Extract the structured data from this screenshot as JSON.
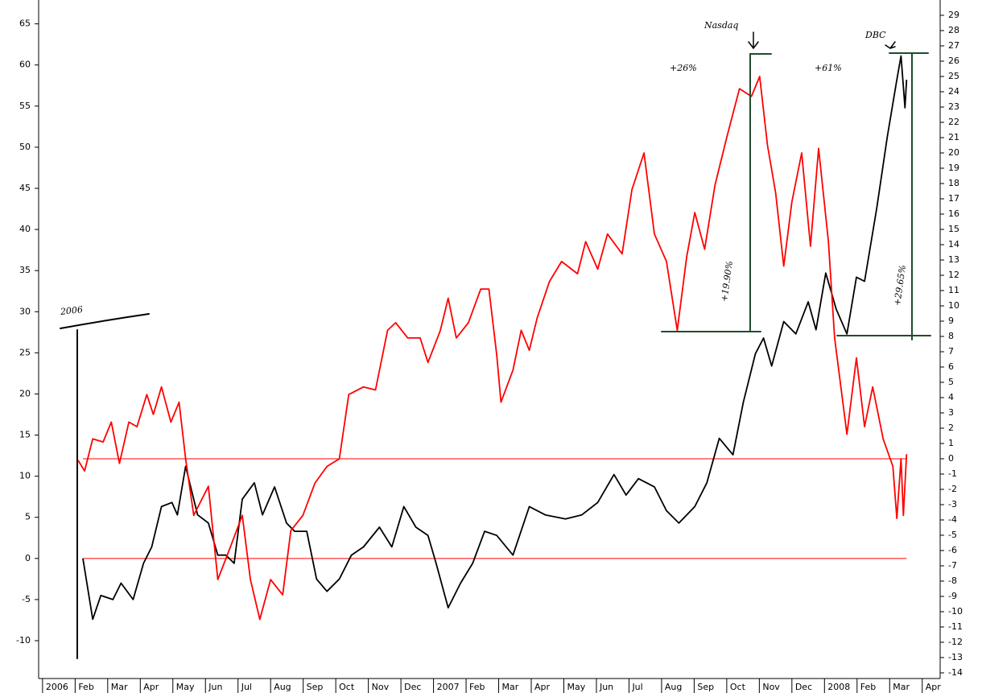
{
  "chart_data": {
    "type": "line",
    "xlim": [
      -0.12,
      27.55
    ],
    "xticks": [
      {
        "value": 0,
        "label": "2006"
      },
      {
        "value": 1,
        "label": "Feb"
      },
      {
        "value": 2,
        "label": "Mar"
      },
      {
        "value": 3,
        "label": "Apr"
      },
      {
        "value": 4,
        "label": "May"
      },
      {
        "value": 5,
        "label": "Jun"
      },
      {
        "value": 6,
        "label": "Jul"
      },
      {
        "value": 7,
        "label": "Aug"
      },
      {
        "value": 8,
        "label": "Sep"
      },
      {
        "value": 9,
        "label": "Oct"
      },
      {
        "value": 10,
        "label": "Nov"
      },
      {
        "value": 11,
        "label": "Dec"
      },
      {
        "value": 12,
        "label": "2007"
      },
      {
        "value": 13,
        "label": "Feb"
      },
      {
        "value": 14,
        "label": "Mar"
      },
      {
        "value": 15,
        "label": "Apr"
      },
      {
        "value": 16,
        "label": "May"
      },
      {
        "value": 17,
        "label": "Jun"
      },
      {
        "value": 18,
        "label": "Jul"
      },
      {
        "value": 19,
        "label": "Aug"
      },
      {
        "value": 20,
        "label": "Sep"
      },
      {
        "value": 21,
        "label": "Oct"
      },
      {
        "value": 22,
        "label": "Nov"
      },
      {
        "value": 23,
        "label": "Dec"
      },
      {
        "value": 24,
        "label": "2008"
      },
      {
        "value": 25,
        "label": "Feb"
      },
      {
        "value": 26,
        "label": "Mar"
      },
      {
        "value": 27,
        "label": "Apr"
      }
    ],
    "ylim": [
      -14.6,
      67.9
    ],
    "yticks": [
      -10,
      -5,
      0,
      5,
      10,
      15,
      20,
      25,
      30,
      35,
      40,
      45,
      50,
      55,
      60,
      65
    ],
    "y2lim": [
      -14.37,
      30
    ],
    "y2ticks": [
      -14,
      -13,
      -12,
      -11,
      -10,
      -9,
      -8,
      -7,
      -6,
      -5,
      -4,
      -3,
      -2,
      -1,
      0,
      1,
      2,
      3,
      4,
      5,
      6,
      7,
      8,
      9,
      10,
      11,
      12,
      13,
      14,
      15,
      16,
      17,
      18,
      19,
      20,
      21,
      22,
      23,
      24,
      25,
      26,
      27,
      28,
      29
    ],
    "reference_lines": [
      {
        "axis": "y",
        "value": 0,
        "color": "#ff0000"
      },
      {
        "axis": "y2",
        "value": 0,
        "color": "#ff0000"
      }
    ],
    "series": [
      {
        "name": "DBC",
        "color": "#000000",
        "axis": "y",
        "x": [
          1.24,
          1.54,
          1.79,
          2.16,
          2.41,
          2.78,
          3.1,
          3.35,
          3.65,
          3.97,
          4.14,
          4.39,
          4.76,
          5.09,
          5.38,
          5.63,
          5.88,
          6.13,
          6.5,
          6.75,
          7.12,
          7.49,
          7.74,
          8.11,
          8.41,
          8.73,
          9.11,
          9.48,
          9.85,
          10.34,
          10.72,
          11.09,
          11.46,
          11.83,
          12.08,
          12.45,
          12.83,
          13.2,
          13.57,
          13.94,
          14.44,
          14.94,
          15.43,
          16.05,
          16.55,
          17.04,
          17.54,
          17.91,
          18.29,
          18.78,
          19.15,
          19.53,
          20.02,
          20.39,
          20.77,
          21.19,
          21.51,
          21.88,
          22.13,
          22.38,
          22.75,
          23.12,
          23.5,
          23.74,
          24.04,
          24.36,
          24.69,
          24.98,
          25.23,
          25.6,
          25.93,
          26.22,
          26.35,
          26.47,
          26.52
        ],
        "values": [
          0,
          -7.4,
          -4.5,
          -5,
          -3,
          -5,
          -0.6,
          1.4,
          6.3,
          6.8,
          5.3,
          11.2,
          5.3,
          4.3,
          0.4,
          0.4,
          -0.6,
          7.2,
          9.2,
          5.3,
          8.7,
          4.3,
          3.3,
          3.3,
          -2.5,
          -4,
          -2.5,
          0.4,
          1.4,
          3.8,
          1.4,
          6.3,
          3.8,
          2.8,
          -0.6,
          -6,
          -3,
          -0.6,
          3.3,
          2.8,
          0.4,
          6.3,
          5.3,
          4.8,
          5.3,
          6.8,
          10.2,
          7.7,
          9.7,
          8.7,
          5.8,
          4.3,
          6.3,
          9.2,
          14.6,
          12.6,
          19,
          24.9,
          26.8,
          23.4,
          28.8,
          27.3,
          31.2,
          27.8,
          34.7,
          30.3,
          27.3,
          34.2,
          33.7,
          42.5,
          51.3,
          58.2,
          61.1,
          54.8,
          58.2
        ]
      },
      {
        "name": "Nasdaq",
        "color": "#ff0000",
        "axis": "y2",
        "x": [
          1.09,
          1.29,
          1.54,
          1.86,
          2.11,
          2.36,
          2.65,
          2.9,
          3.2,
          3.4,
          3.65,
          3.94,
          4.19,
          4.39,
          4.64,
          5.09,
          5.38,
          5.76,
          6.13,
          6.38,
          6.67,
          7.0,
          7.37,
          7.62,
          7.99,
          8.36,
          8.73,
          9.11,
          9.4,
          9.85,
          10.22,
          10.59,
          10.84,
          11.21,
          11.59,
          11.83,
          12.21,
          12.45,
          12.7,
          13.07,
          13.45,
          13.7,
          13.94,
          14.07,
          14.44,
          14.69,
          14.94,
          15.18,
          15.56,
          15.93,
          16.42,
          16.67,
          17.04,
          17.34,
          17.79,
          18.09,
          18.46,
          18.78,
          19.15,
          19.48,
          19.77,
          20.02,
          20.32,
          20.64,
          21.01,
          21.39,
          21.76,
          22.01,
          22.25,
          22.5,
          22.75,
          23.0,
          23.3,
          23.57,
          23.82,
          24.12,
          24.31,
          24.69,
          24.98,
          25.23,
          25.48,
          25.8,
          26.1,
          26.22,
          26.35,
          26.42,
          26.52
        ],
        "values": [
          -0.1,
          -0.8,
          1.3,
          1.1,
          2.4,
          -0.3,
          2.4,
          2.1,
          4.2,
          2.9,
          4.7,
          2.4,
          3.7,
          0,
          -3.7,
          -1.8,
          -7.9,
          -5.8,
          -3.7,
          -7.9,
          -10.5,
          -7.9,
          -8.9,
          -4.7,
          -3.7,
          -1.6,
          -0.5,
          0,
          4.2,
          4.7,
          4.5,
          8.4,
          8.9,
          7.9,
          7.9,
          6.3,
          8.4,
          10.5,
          7.9,
          8.9,
          11.1,
          11.1,
          6.8,
          3.7,
          5.8,
          8.4,
          7.1,
          9.2,
          11.6,
          12.9,
          12.1,
          14.2,
          12.4,
          14.7,
          13.4,
          17.6,
          20,
          14.7,
          12.9,
          8.4,
          13.2,
          16.1,
          13.7,
          17.9,
          21.1,
          24.2,
          23.7,
          25,
          20.5,
          17.4,
          12.6,
          16.8,
          20,
          13.9,
          20.3,
          14.2,
          7.9,
          1.6,
          6.6,
          2.1,
          4.7,
          1.3,
          -0.5,
          -3.9,
          0,
          -3.7,
          0.3
        ]
      }
    ],
    "annotations": [
      {
        "text": "2006",
        "color": "#000000"
      },
      {
        "text": "Nasdaq",
        "color": "#000000"
      },
      {
        "text": "+26%",
        "color": "#000000"
      },
      {
        "text": "DBC",
        "color": "#000000"
      },
      {
        "text": "+61%",
        "color": "#000000"
      },
      {
        "text": "+19.90%",
        "color": "#1e5a2e"
      },
      {
        "text": "+29.65%",
        "color": "#1e5a2e"
      }
    ]
  }
}
